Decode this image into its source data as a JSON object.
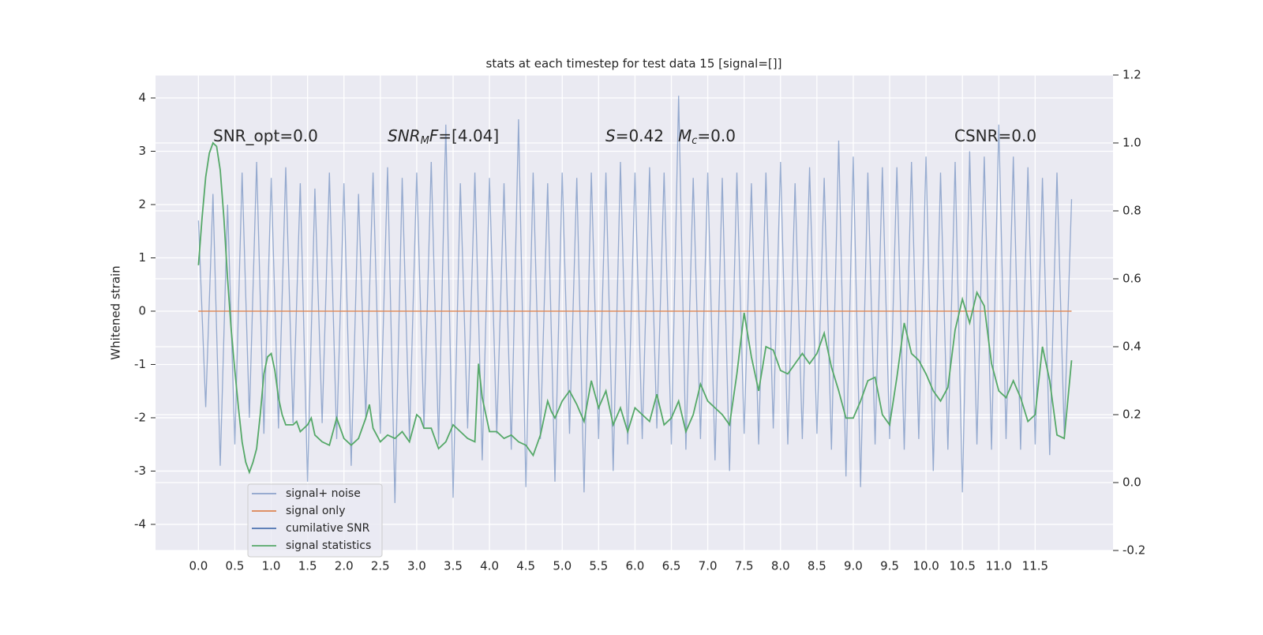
{
  "chart_data": {
    "type": "line",
    "title": "stats at each timestep for test data 15 [signal=[]]",
    "ylabel": "Whitened strain",
    "xlim": [
      -0.59,
      12.57
    ],
    "ylim": [
      -4.49,
      4.43
    ],
    "y2lim": [
      -0.2,
      1.2
    ],
    "xticks": [
      {
        "value": 0,
        "label": "0.0"
      },
      0.5,
      {
        "value": 1,
        "label": "1.0"
      },
      1.5,
      {
        "value": 2,
        "label": "2.0"
      },
      2.5,
      {
        "value": 3,
        "label": "3.0"
      },
      3.5,
      {
        "value": 4,
        "label": "4.0"
      },
      4.5,
      {
        "value": 5,
        "label": "5.0"
      },
      5.5,
      {
        "value": 6,
        "label": "6.0"
      },
      6.5,
      {
        "value": 7,
        "label": "7.0"
      },
      7.5,
      {
        "value": 8,
        "label": "8.0"
      },
      8.5,
      {
        "value": 9,
        "label": "9.0"
      },
      9.5,
      {
        "value": 10,
        "label": "10.0"
      },
      10.5,
      {
        "value": 11,
        "label": "11.0"
      },
      11.5
    ],
    "yticks": [
      -4,
      -3,
      -2,
      -1,
      0,
      1,
      2,
      3,
      4
    ],
    "y2ticks": [
      -0.2,
      {
        "value": 0,
        "label": "0.0"
      },
      0.2,
      0.4,
      0.6,
      0.8,
      {
        "value": 1,
        "label": "1.0"
      },
      1.2
    ],
    "grid": true,
    "legend": "lower left",
    "annotations": [
      {
        "parts": [
          {
            "text": "SNR_opt=0.0"
          }
        ]
      },
      {
        "parts": [
          {
            "text": "SNR",
            "italic": true
          },
          {
            "text": "M",
            "italic": true,
            "sub": true
          },
          {
            "text": "F",
            "italic": true
          },
          {
            "text": "=[4.04]"
          }
        ]
      },
      {
        "parts": [
          {
            "text": "S",
            "italic": true
          },
          {
            "text": "=0.42"
          }
        ]
      },
      {
        "parts": [
          {
            "text": "M",
            "italic": true
          },
          {
            "text": "c",
            "italic": true,
            "sub": true
          },
          {
            "text": "=0.0"
          }
        ]
      },
      {
        "parts": [
          {
            "text": "CSNR=0.0"
          }
        ]
      }
    ],
    "series": [
      {
        "name": "signal+ noise",
        "color": "#4c72b0",
        "x": [
          0,
          0.1,
          0.2,
          0.3,
          0.4,
          0.5,
          0.6,
          0.7,
          0.8,
          0.9,
          1,
          1.1,
          1.2,
          1.3,
          1.4,
          1.5,
          1.6,
          1.7,
          1.8,
          1.9,
          2,
          2.1,
          2.2,
          2.3,
          2.4,
          2.5,
          2.6,
          2.7,
          2.8,
          2.9,
          3,
          3.1,
          3.2,
          3.3,
          3.4,
          3.5,
          3.6,
          3.7,
          3.8,
          3.9,
          4,
          4.1,
          4.2,
          4.3,
          4.4,
          4.5,
          4.6,
          4.7,
          4.8,
          4.9,
          5,
          5.1,
          5.2,
          5.3,
          5.4,
          5.5,
          5.6,
          5.7,
          5.8,
          5.9,
          6,
          6.1,
          6.2,
          6.3,
          6.4,
          6.5,
          6.6,
          6.7,
          6.8,
          6.9,
          7,
          7.1,
          7.2,
          7.3,
          7.4,
          7.5,
          7.6,
          7.7,
          7.8,
          7.9,
          8,
          8.1,
          8.2,
          8.3,
          8.4,
          8.5,
          8.6,
          8.7,
          8.8,
          8.9,
          9,
          9.1,
          9.2,
          9.3,
          9.4,
          9.5,
          9.6,
          9.7,
          9.8,
          9.9,
          10,
          10.1,
          10.2,
          10.3,
          10.4,
          10.5,
          10.6,
          10.7,
          10.8,
          10.9,
          11,
          11.1,
          11.2,
          11.3,
          11.4,
          11.5,
          11.6,
          11.7,
          11.8,
          11.9,
          12
        ],
        "values": [
          1.7,
          -1.8,
          2.2,
          -2.9,
          2.0,
          -2.5,
          2.6,
          -2.0,
          2.8,
          -2.3,
          2.5,
          -2.2,
          2.7,
          -2.1,
          2.4,
          -3.2,
          2.3,
          -2.1,
          2.6,
          -2.4,
          2.4,
          -2.9,
          2.2,
          -2.0,
          2.6,
          -2.3,
          2.7,
          -3.6,
          2.5,
          -2.4,
          2.6,
          -2.2,
          2.8,
          -2.5,
          3.5,
          -3.5,
          2.4,
          -2.2,
          2.6,
          -2.8,
          2.5,
          -2.3,
          2.4,
          -2.6,
          3.6,
          -3.3,
          2.6,
          -2.4,
          2.4,
          -3.2,
          2.6,
          -2.3,
          2.5,
          -3.4,
          2.6,
          -2.4,
          2.6,
          -3.0,
          2.8,
          -2.5,
          2.6,
          -2.4,
          2.7,
          -2.2,
          2.6,
          -2.5,
          4.04,
          -2.6,
          2.5,
          -2.4,
          2.6,
          -2.8,
          2.5,
          -3.0,
          2.6,
          -2.3,
          2.4,
          -2.5,
          2.6,
          -2.2,
          2.8,
          -2.5,
          2.4,
          -2.4,
          2.7,
          -2.3,
          2.5,
          -2.6,
          3.2,
          -3.1,
          2.9,
          -3.3,
          2.6,
          -2.5,
          2.7,
          -2.4,
          2.7,
          -2.6,
          2.8,
          -2.4,
          2.9,
          -3.0,
          2.6,
          -2.6,
          2.8,
          -3.4,
          3.0,
          -2.5,
          2.9,
          -2.6,
          3.5,
          -2.4,
          2.9,
          -2.6,
          2.7,
          -2.5,
          2.5,
          -2.7,
          2.6,
          -2.3,
          2.1
        ]
      },
      {
        "name": "signal only",
        "color": "#dd8452",
        "x": [
          0,
          12
        ],
        "values": [
          0,
          0
        ]
      },
      {
        "name": "cumilative SNR",
        "color": "#4c72b0",
        "x": [],
        "values": []
      },
      {
        "name": "signal statistics",
        "color": "#55a868",
        "axis": "y2",
        "x": [
          0,
          0.05,
          0.1,
          0.15,
          0.2,
          0.25,
          0.3,
          0.35,
          0.4,
          0.45,
          0.5,
          0.55,
          0.6,
          0.65,
          0.7,
          0.75,
          0.8,
          0.85,
          0.9,
          0.95,
          1,
          1.05,
          1.1,
          1.15,
          1.2,
          1.3,
          1.35,
          1.4,
          1.5,
          1.55,
          1.6,
          1.7,
          1.8,
          1.9,
          2,
          2.1,
          2.2,
          2.3,
          2.35,
          2.4,
          2.5,
          2.6,
          2.7,
          2.8,
          2.9,
          3,
          3.05,
          3.1,
          3.2,
          3.3,
          3.4,
          3.5,
          3.6,
          3.7,
          3.8,
          3.85,
          3.9,
          4,
          4.1,
          4.2,
          4.3,
          4.4,
          4.5,
          4.6,
          4.7,
          4.8,
          4.85,
          4.9,
          5,
          5.1,
          5.2,
          5.3,
          5.4,
          5.5,
          5.6,
          5.7,
          5.8,
          5.9,
          6,
          6.1,
          6.2,
          6.3,
          6.4,
          6.5,
          6.6,
          6.7,
          6.8,
          6.9,
          7,
          7.1,
          7.2,
          7.3,
          7.4,
          7.5,
          7.6,
          7.7,
          7.8,
          7.9,
          8,
          8.1,
          8.2,
          8.3,
          8.4,
          8.5,
          8.6,
          8.7,
          8.8,
          8.9,
          9,
          9.1,
          9.2,
          9.3,
          9.4,
          9.5,
          9.6,
          9.7,
          9.8,
          9.9,
          10,
          10.1,
          10.2,
          10.3,
          10.4,
          10.5,
          10.6,
          10.7,
          10.8,
          10.9,
          11,
          11.1,
          11.2,
          11.3,
          11.4,
          11.5,
          11.6,
          11.7,
          11.8,
          11.9,
          12
        ],
        "values": [
          0.64,
          0.78,
          0.9,
          0.97,
          1.0,
          0.99,
          0.92,
          0.78,
          0.6,
          0.45,
          0.33,
          0.22,
          0.12,
          0.06,
          0.03,
          0.06,
          0.1,
          0.2,
          0.32,
          0.37,
          0.38,
          0.33,
          0.25,
          0.2,
          0.17,
          0.17,
          0.18,
          0.15,
          0.17,
          0.19,
          0.14,
          0.12,
          0.11,
          0.19,
          0.13,
          0.11,
          0.13,
          0.19,
          0.23,
          0.16,
          0.12,
          0.14,
          0.13,
          0.15,
          0.12,
          0.2,
          0.19,
          0.16,
          0.16,
          0.1,
          0.12,
          0.17,
          0.15,
          0.13,
          0.12,
          0.35,
          0.25,
          0.15,
          0.15,
          0.13,
          0.14,
          0.12,
          0.11,
          0.08,
          0.14,
          0.24,
          0.21,
          0.19,
          0.24,
          0.27,
          0.23,
          0.18,
          0.3,
          0.22,
          0.27,
          0.17,
          0.22,
          0.15,
          0.22,
          0.2,
          0.18,
          0.26,
          0.17,
          0.19,
          0.24,
          0.15,
          0.2,
          0.29,
          0.24,
          0.22,
          0.2,
          0.17,
          0.32,
          0.5,
          0.37,
          0.27,
          0.4,
          0.39,
          0.33,
          0.32,
          0.35,
          0.38,
          0.35,
          0.38,
          0.44,
          0.34,
          0.27,
          0.19,
          0.19,
          0.24,
          0.3,
          0.31,
          0.2,
          0.17,
          0.31,
          0.47,
          0.38,
          0.36,
          0.32,
          0.27,
          0.24,
          0.28,
          0.45,
          0.54,
          0.47,
          0.56,
          0.52,
          0.35,
          0.27,
          0.25,
          0.3,
          0.25,
          0.18,
          0.2,
          0.4,
          0.3,
          0.14,
          0.13,
          0.36
        ]
      }
    ]
  }
}
